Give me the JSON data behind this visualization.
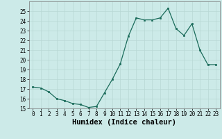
{
  "x": [
    0,
    1,
    2,
    3,
    4,
    5,
    6,
    7,
    8,
    9,
    10,
    11,
    12,
    13,
    14,
    15,
    16,
    17,
    18,
    19,
    20,
    21,
    22,
    23
  ],
  "y": [
    17.2,
    17.1,
    16.7,
    16.0,
    15.8,
    15.5,
    15.4,
    15.1,
    15.2,
    16.6,
    18.0,
    19.6,
    22.4,
    24.3,
    24.1,
    24.1,
    24.3,
    25.3,
    23.2,
    22.5,
    23.7,
    21.0,
    19.5,
    19.5
  ],
  "xlabel": "Humidex (Indice chaleur)",
  "ylim": [
    15,
    26
  ],
  "xlim": [
    -0.5,
    23.5
  ],
  "yticks": [
    15,
    16,
    17,
    18,
    19,
    20,
    21,
    22,
    23,
    24,
    25
  ],
  "xticks": [
    0,
    1,
    2,
    3,
    4,
    5,
    6,
    7,
    8,
    9,
    10,
    11,
    12,
    13,
    14,
    15,
    16,
    17,
    18,
    19,
    20,
    21,
    22,
    23
  ],
  "line_color": "#1a6b5a",
  "marker_color": "#1a6b5a",
  "bg_color": "#cceae8",
  "grid_color": "#b8d8d5",
  "tick_fontsize": 5.5,
  "xlabel_fontsize": 7.5
}
